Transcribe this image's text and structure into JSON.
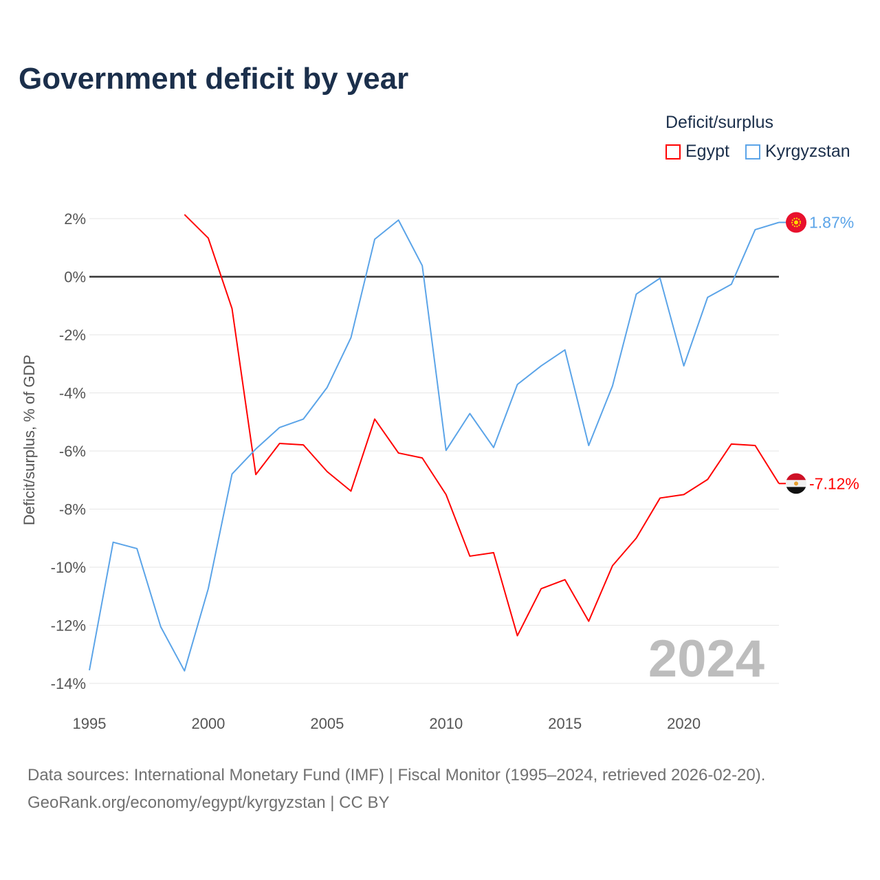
{
  "title": "Government deficit by year",
  "legend": {
    "title": "Deficit/surplus",
    "items": [
      {
        "label": "Egypt",
        "color": "#ff0000"
      },
      {
        "label": "Kyrgyzstan",
        "color": "#5ba4e8"
      }
    ]
  },
  "source": {
    "line1": "Data sources: International Monetary Fund (IMF) | Fiscal Monitor (1995–2024, retrieved 2026-02-20).",
    "line2": "GeoRank.org/economy/egypt/kyrgyzstan | CC BY"
  },
  "chart_data": {
    "type": "line",
    "title": "Government deficit by year",
    "ylabel": "Deficit/surplus, % of GDP",
    "xlabel": "",
    "xlim": [
      1995,
      2024
    ],
    "ylim": [
      -14,
      2
    ],
    "xticks": [
      1995,
      2000,
      2005,
      2010,
      2015,
      2020
    ],
    "yticks": [
      2,
      0,
      -2,
      -4,
      -6,
      -8,
      -10,
      -12,
      -14
    ],
    "ytick_labels": [
      "2%",
      "0%",
      "-2%",
      "-4%",
      "-6%",
      "-8%",
      "-10%",
      "-12%",
      "-14%"
    ],
    "watermark_year": "2024",
    "series": [
      {
        "name": "Egypt",
        "color": "#ff0000",
        "end_label": "-7.12%",
        "x": [
          1999,
          2000,
          2001,
          2002,
          2003,
          2004,
          2005,
          2006,
          2007,
          2008,
          2009,
          2010,
          2011,
          2012,
          2013,
          2014,
          2015,
          2016,
          2017,
          2018,
          2019,
          2020,
          2021,
          2022,
          2023,
          2024
        ],
        "values": [
          2.14,
          1.33,
          -1.1,
          -6.81,
          -5.74,
          -5.79,
          -6.71,
          -7.38,
          -4.9,
          -6.07,
          -6.24,
          -7.5,
          -9.62,
          -9.5,
          -12.36,
          -10.74,
          -10.43,
          -11.86,
          -9.95,
          -9.0,
          -7.62,
          -7.5,
          -6.98,
          -5.76,
          -5.81,
          -7.12
        ]
      },
      {
        "name": "Kyrgyzstan",
        "color": "#5ba4e8",
        "end_label": "1.87%",
        "x": [
          1995,
          1996,
          1997,
          1998,
          1999,
          2000,
          2001,
          2002,
          2003,
          2004,
          2005,
          2006,
          2007,
          2008,
          2009,
          2010,
          2011,
          2012,
          2013,
          2014,
          2015,
          2016,
          2017,
          2018,
          2019,
          2020,
          2021,
          2022,
          2023,
          2024
        ],
        "values": [
          -13.55,
          -9.14,
          -9.36,
          -12.05,
          -13.57,
          -10.74,
          -6.79,
          -5.93,
          -5.19,
          -4.9,
          -3.81,
          -2.1,
          1.29,
          1.95,
          0.38,
          -5.98,
          -4.71,
          -5.88,
          -3.71,
          -3.07,
          -2.52,
          -5.81,
          -3.76,
          -0.6,
          -0.05,
          -3.07,
          -0.71,
          -0.26,
          1.62,
          1.87
        ]
      }
    ]
  }
}
